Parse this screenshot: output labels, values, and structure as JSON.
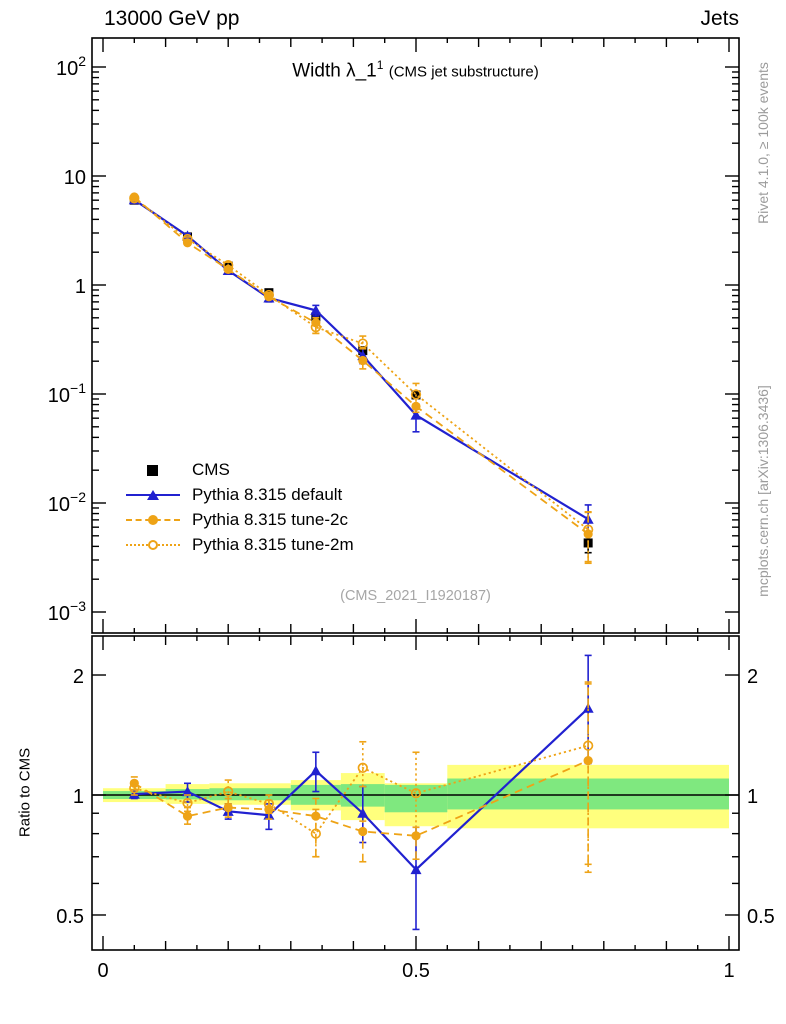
{
  "header": {
    "left": "13000 GeV pp",
    "right": "Jets"
  },
  "plot": {
    "title_main": "Width λ_1",
    "title_sup": "1",
    "title_note": "(CMS jet substructure)",
    "watermark": "(CMS_2021_I1920187)"
  },
  "side_texts": {
    "top": "Rivet 4.1.0, ≥ 100k events",
    "bottom": "mcplots.cern.ch [arXiv:1306.3436]"
  },
  "legend": {
    "items": [
      {
        "label": "CMS",
        "marker": "square",
        "line": "none"
      },
      {
        "label": "Pythia 8.315 default",
        "marker": "triangle",
        "line": "solid"
      },
      {
        "label": "Pythia 8.315 tune-2c",
        "marker": "circle",
        "line": "dashed"
      },
      {
        "label": "Pythia 8.315 tune-2m",
        "marker": "circle-open",
        "line": "dotted"
      }
    ]
  },
  "colors": {
    "blue": "#2121d0",
    "orange": "#eea316",
    "band_green": "#7fe87f",
    "band_yellow": "#ffff7d",
    "gray_text": "#9b9b9b",
    "watermark": "#a6a6a6"
  },
  "chart_data": {
    "type": "line",
    "title": "Width λ_1^1 (CMS jet substructure)",
    "xlim": [
      0,
      1
    ],
    "x": [
      0.05,
      0.135,
      0.2,
      0.265,
      0.34,
      0.415,
      0.5,
      0.775
    ],
    "bin_edges": [
      0,
      0.1,
      0.17,
      0.23,
      0.3,
      0.38,
      0.45,
      0.55,
      1.0
    ],
    "x_ticks_labeled": [
      {
        "t": "0",
        "v": 0
      },
      {
        "t": "0.5",
        "v": 0.5
      },
      {
        "t": "1",
        "v": 1
      }
    ],
    "main_panel": {
      "yscale": "log",
      "ylim": [
        0.00064,
        185
      ],
      "yticks": [
        {
          "t": "10",
          "sup": "2",
          "v": 100
        },
        {
          "t": "10",
          "sup": "",
          "v": 10
        },
        {
          "t": "1",
          "sup": "",
          "v": 1
        },
        {
          "t": "10",
          "sup": "−1",
          "v": 0.1
        },
        {
          "t": "10",
          "sup": "−2",
          "v": 0.01
        },
        {
          "t": "10",
          "sup": "−3",
          "v": 0.001
        }
      ],
      "series": [
        {
          "name": "CMS",
          "color": "#000000",
          "marker": "square",
          "line": "none",
          "values": [
            6.0,
            2.76,
            1.49,
            0.85,
            0.51,
            0.25,
            0.098,
            0.0043
          ],
          "err_lo": [
            5.85,
            2.68,
            1.44,
            0.82,
            0.49,
            0.235,
            0.092,
            0.0035
          ],
          "err_hi": [
            6.15,
            2.85,
            1.54,
            0.88,
            0.53,
            0.265,
            0.104,
            0.005
          ]
        },
        {
          "name": "Pythia 8.315 default",
          "color": "#2121d0",
          "marker": "triangle",
          "line": "solid",
          "values": [
            6.05,
            2.82,
            1.36,
            0.76,
            0.585,
            0.225,
            0.064,
            0.0071
          ],
          "err_lo": [
            5.88,
            2.65,
            1.3,
            0.7,
            0.52,
            0.19,
            0.045,
            0.0052
          ],
          "err_hi": [
            6.18,
            2.95,
            1.42,
            0.81,
            0.65,
            0.26,
            0.081,
            0.0096
          ]
        },
        {
          "name": "Pythia 8.315 tune-2c",
          "color": "#eea316",
          "marker": "circle",
          "line": "dashed",
          "values": [
            6.42,
            2.44,
            1.39,
            0.78,
            0.45,
            0.203,
            0.077,
            0.0052
          ],
          "err_lo": [
            6.18,
            2.33,
            1.31,
            0.74,
            0.36,
            0.17,
            0.068,
            0.0029
          ],
          "err_hi": [
            6.66,
            2.57,
            1.46,
            0.82,
            0.5,
            0.215,
            0.081,
            0.0082
          ]
        },
        {
          "name": "Pythia 8.315 tune-2m",
          "color": "#eea316",
          "marker": "circle-open",
          "line": "dotted",
          "values": [
            6.24,
            2.64,
            1.52,
            0.81,
            0.41,
            0.29,
            0.099,
            0.0057
          ],
          "err_lo": [
            6.0,
            2.51,
            1.42,
            0.77,
            0.36,
            0.26,
            0.076,
            0.0028
          ],
          "err_hi": [
            6.48,
            2.76,
            1.62,
            0.85,
            0.47,
            0.34,
            0.125,
            0.0083
          ]
        }
      ]
    },
    "ratio_panel": {
      "ylabel": "Ratio to CMS",
      "yscale": "log",
      "ylim": [
        0.41,
        2.49
      ],
      "ref_line": 1,
      "yticks": [
        {
          "t": "2",
          "v": 2
        },
        {
          "t": "1",
          "v": 1
        },
        {
          "t": "0.5",
          "v": 0.5
        }
      ],
      "bands": {
        "edges": [
          0,
          0.1,
          0.17,
          0.23,
          0.3,
          0.38,
          0.45,
          0.55,
          1.0
        ],
        "green": [
          [
            0.977,
            1.023
          ],
          [
            0.975,
            1.035
          ],
          [
            0.97,
            1.04
          ],
          [
            0.97,
            1.04
          ],
          [
            0.945,
            1.06
          ],
          [
            0.935,
            1.065
          ],
          [
            0.905,
            1.06
          ],
          [
            0.92,
            1.1
          ]
        ],
        "yellow": [
          [
            0.96,
            1.04
          ],
          [
            0.95,
            1.065
          ],
          [
            0.945,
            1.07
          ],
          [
            0.945,
            1.07
          ],
          [
            0.915,
            1.09
          ],
          [
            0.865,
            1.135
          ],
          [
            0.835,
            1.07
          ],
          [
            0.825,
            1.19
          ]
        ]
      },
      "series": [
        {
          "name": "Pythia 8.315 default",
          "color": "#2121d0",
          "marker": "triangle",
          "line": "solid",
          "values": [
            1.005,
            1.02,
            0.91,
            0.89,
            1.15,
            0.9,
            0.65,
            1.65
          ],
          "err_lo": [
            0.98,
            0.96,
            0.87,
            0.82,
            1.02,
            0.76,
            0.46,
            1.2
          ],
          "err_hi": [
            1.03,
            1.07,
            0.95,
            0.95,
            1.28,
            1.05,
            0.83,
            2.24
          ]
        },
        {
          "name": "Pythia 8.315 tune-2c",
          "color": "#eea316",
          "marker": "circle",
          "line": "dashed",
          "values": [
            1.07,
            0.885,
            0.93,
            0.92,
            0.885,
            0.81,
            0.79,
            1.22
          ],
          "err_lo": [
            1.03,
            0.845,
            0.88,
            0.87,
            0.7,
            0.68,
            0.69,
            0.67
          ],
          "err_hi": [
            1.11,
            0.93,
            0.98,
            0.97,
            0.98,
            0.86,
            0.83,
            1.9
          ]
        },
        {
          "name": "Pythia 8.315 tune-2m",
          "color": "#eea316",
          "marker": "circle-open",
          "line": "dotted",
          "values": [
            1.04,
            0.955,
            1.02,
            0.95,
            0.8,
            1.17,
            1.01,
            1.33
          ],
          "err_lo": [
            1.0,
            0.91,
            0.95,
            0.9,
            0.7,
            1.05,
            0.78,
            0.64
          ],
          "err_hi": [
            1.08,
            1.0,
            1.09,
            1.0,
            0.92,
            1.36,
            1.28,
            1.92
          ]
        }
      ]
    }
  }
}
